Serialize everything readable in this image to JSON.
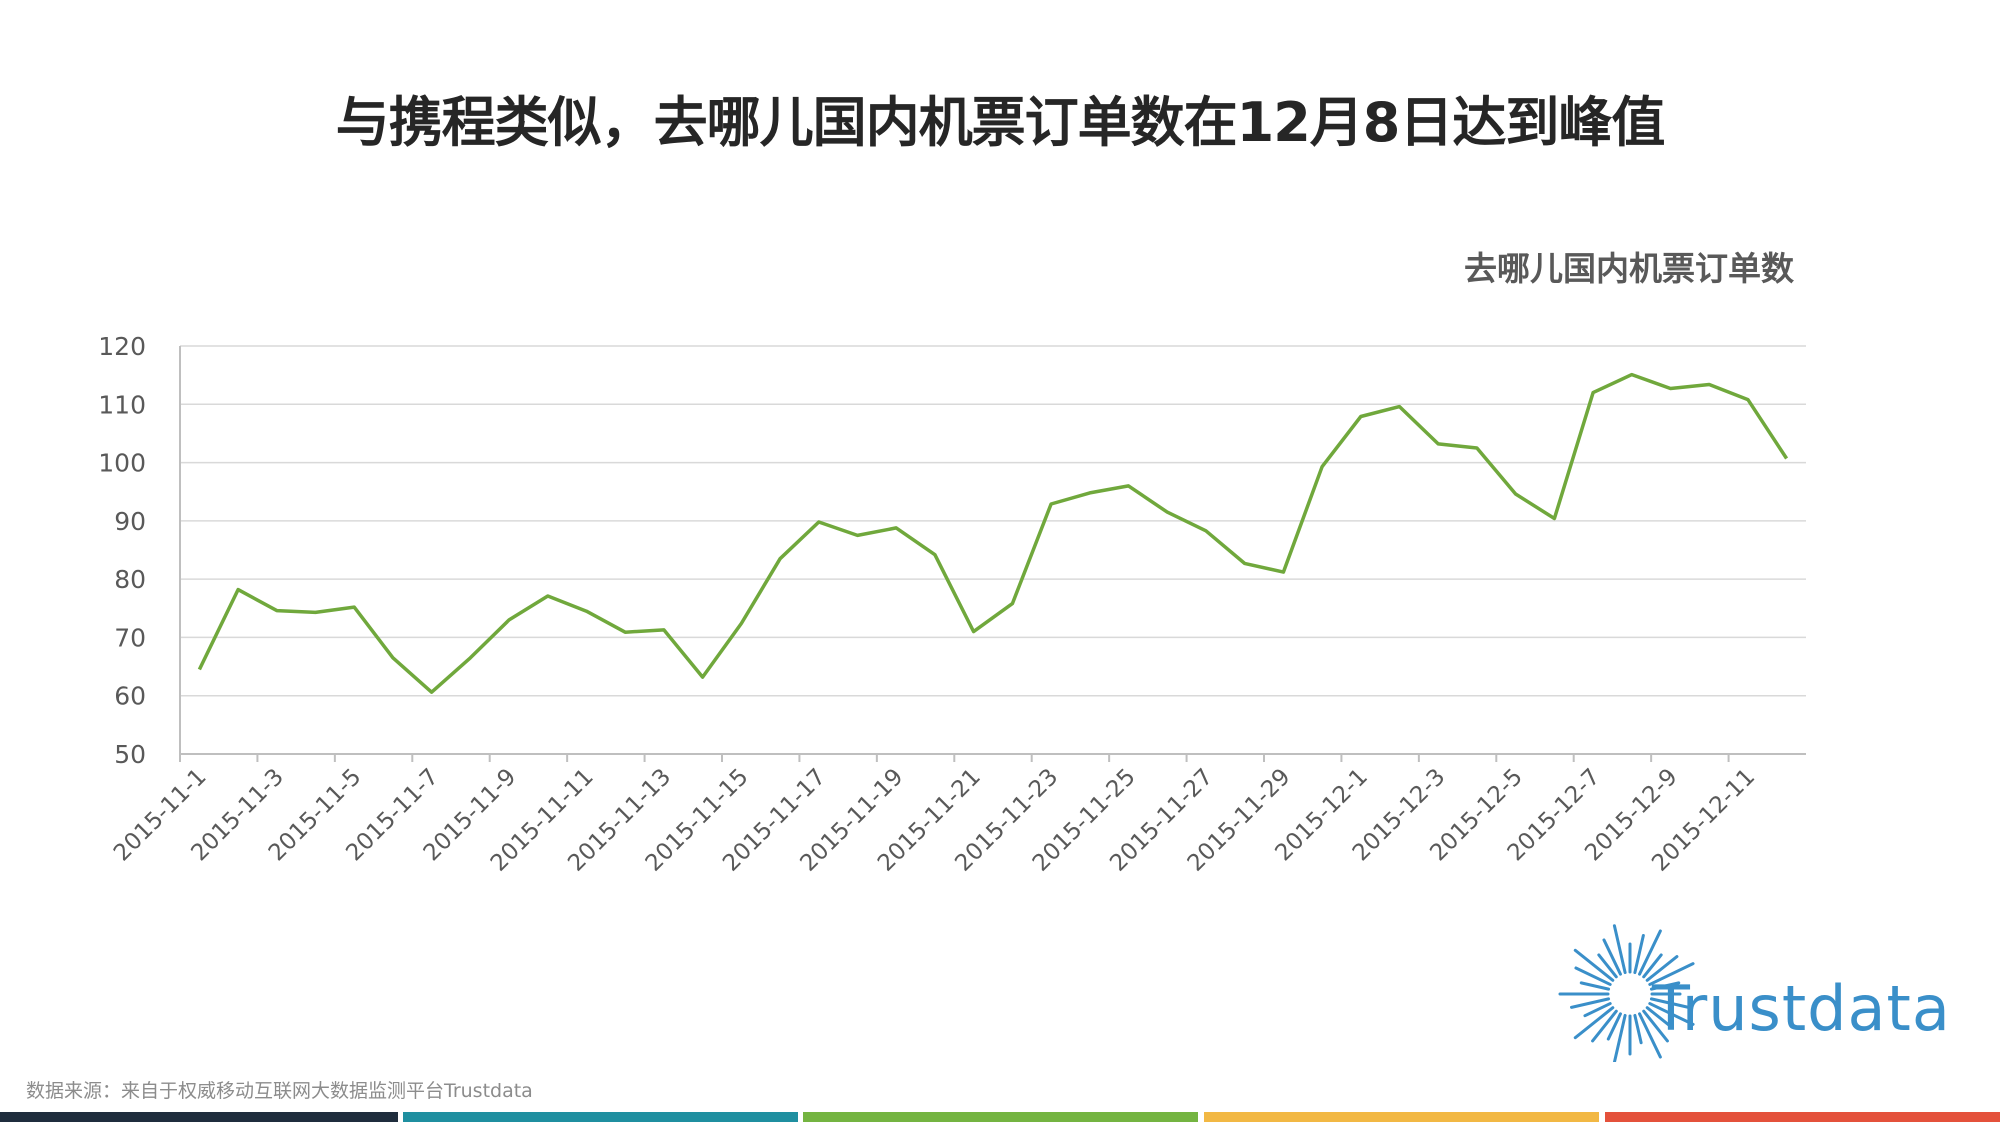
{
  "title": "与携程类似，去哪儿国内机票订单数在12月8日达到峰值",
  "source": "数据来源：来自于权威移动互联网大数据监测平台Trustdata",
  "logo_text": "Trustdata",
  "colors": {
    "line": "#70a83c",
    "grid": "#d9d9d9",
    "axis_text": "#595959",
    "stripes": [
      "#1f2d3d",
      "#1f8fa0",
      "#74b441",
      "#f2b844",
      "#e4513b"
    ]
  },
  "chart_data": {
    "type": "line",
    "series_label": "去哪儿国内机票订单数",
    "ylim": [
      50,
      120
    ],
    "yticks": [
      50,
      60,
      70,
      80,
      90,
      100,
      110,
      120
    ],
    "x_tick_labels": [
      "2015-11-1",
      "2015-11-3",
      "2015-11-5",
      "2015-11-7",
      "2015-11-9",
      "2015-11-11",
      "2015-11-13",
      "2015-11-15",
      "2015-11-17",
      "2015-11-19",
      "2015-11-21",
      "2015-11-23",
      "2015-11-25",
      "2015-11-27",
      "2015-11-29",
      "2015-12-1",
      "2015-12-3",
      "2015-12-5",
      "2015-12-7",
      "2015-12-9",
      "2015-12-11"
    ],
    "x": [
      "2015-11-1",
      "2015-11-2",
      "2015-11-3",
      "2015-11-4",
      "2015-11-5",
      "2015-11-6",
      "2015-11-7",
      "2015-11-8",
      "2015-11-9",
      "2015-11-10",
      "2015-11-11",
      "2015-11-12",
      "2015-11-13",
      "2015-11-14",
      "2015-11-15",
      "2015-11-16",
      "2015-11-17",
      "2015-11-18",
      "2015-11-19",
      "2015-11-20",
      "2015-11-21",
      "2015-11-22",
      "2015-11-23",
      "2015-11-24",
      "2015-11-25",
      "2015-11-26",
      "2015-11-27",
      "2015-11-28",
      "2015-11-29",
      "2015-11-30",
      "2015-12-1",
      "2015-12-2",
      "2015-12-3",
      "2015-12-4",
      "2015-12-5",
      "2015-12-6",
      "2015-12-7",
      "2015-12-8",
      "2015-12-9",
      "2015-12-10",
      "2015-12-11",
      "2015-12-12"
    ],
    "series": [
      {
        "name": "去哪儿国内机票订单数",
        "values": [
          64.5,
          78.2,
          74.6,
          74.3,
          75.2,
          66.5,
          60.6,
          66.5,
          73.0,
          77.1,
          74.5,
          70.9,
          71.3,
          63.2,
          72.4,
          83.5,
          89.8,
          87.5,
          88.8,
          84.2,
          71.0,
          75.8,
          92.9,
          94.8,
          96.0,
          91.5,
          88.3,
          82.7,
          81.2,
          99.3,
          107.9,
          109.6,
          103.2,
          102.5,
          94.6,
          90.4,
          112.0,
          115.1,
          112.7,
          113.4,
          110.8,
          100.7
        ]
      }
    ],
    "grid": true,
    "legend": "top-right"
  }
}
